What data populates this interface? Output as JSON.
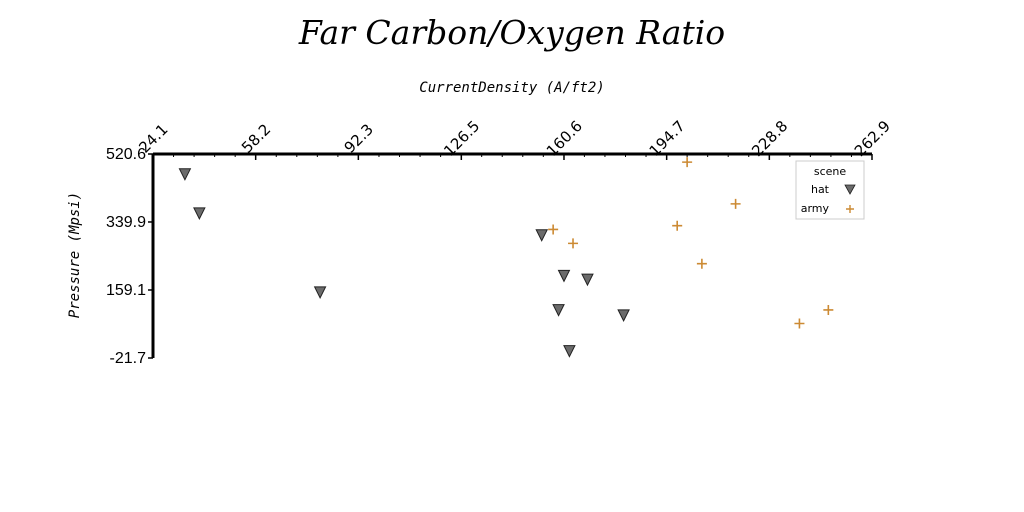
{
  "chart_data": {
    "type": "scatter",
    "title": "Far Carbon/Oxygen Ratio",
    "xlabel": "CurrentDensity (A/ft2)",
    "ylabel": "Pressure (Mpsi)",
    "xlim": [
      24.1,
      262.9
    ],
    "ylim": [
      -21.7,
      520.6
    ],
    "x_ticks": [
      "24.1",
      "58.2",
      "92.3",
      "126.5",
      "160.6",
      "194.7",
      "228.8",
      "262.9"
    ],
    "y_ticks": [
      "520.6",
      "339.9",
      "159.1",
      "-21.7"
    ],
    "x_axis_position": "top",
    "grid": false,
    "legend": {
      "title": "scene",
      "position": "top-right"
    },
    "series": [
      {
        "name": "hat",
        "marker": "triangle-down",
        "color": "#6b6b6b",
        "points": [
          [
            34.7,
            468
          ],
          [
            39.5,
            364
          ],
          [
            79.6,
            154
          ],
          [
            153.2,
            306
          ],
          [
            160.6,
            198
          ],
          [
            158.8,
            107
          ],
          [
            162.4,
            -2
          ],
          [
            168.4,
            188
          ],
          [
            180.4,
            93
          ]
        ]
      },
      {
        "name": "army",
        "marker": "plus",
        "color": "#cc8a33",
        "points": [
          [
            157.0,
            320
          ],
          [
            163.6,
            283
          ],
          [
            201.5,
            499
          ],
          [
            198.2,
            330
          ],
          [
            206.4,
            229
          ],
          [
            217.6,
            388
          ],
          [
            238.8,
            70
          ],
          [
            248.4,
            106
          ]
        ]
      }
    ]
  }
}
